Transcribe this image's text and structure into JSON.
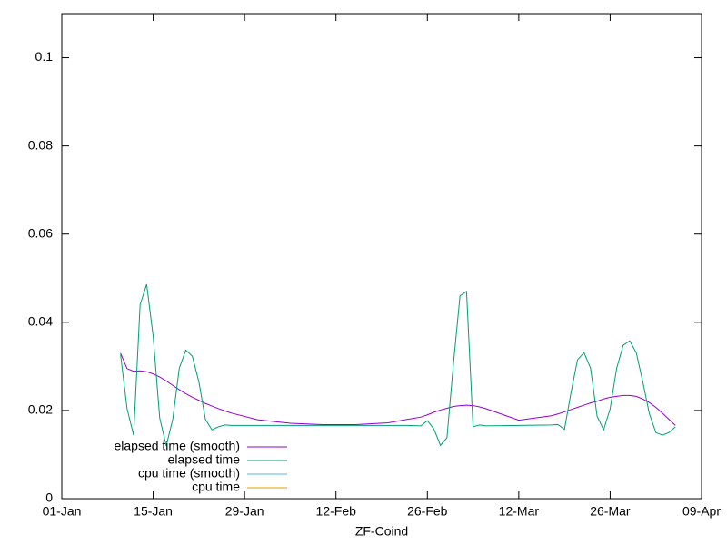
{
  "chart_data": {
    "type": "line",
    "xlabel": "ZF-Coind",
    "xlim": [
      0,
      98
    ],
    "ylim": [
      0,
      0.11
    ],
    "xticks": [
      {
        "value": 0,
        "label": "01-Jan"
      },
      {
        "value": 14,
        "label": "15-Jan"
      },
      {
        "value": 28,
        "label": "29-Jan"
      },
      {
        "value": 42,
        "label": "12-Feb"
      },
      {
        "value": 56,
        "label": "26-Feb"
      },
      {
        "value": 70,
        "label": "12-Mar"
      },
      {
        "value": 84,
        "label": "26-Mar"
      },
      {
        "value": 98,
        "label": "09-Apr"
      }
    ],
    "yticks": [
      0,
      0.02,
      0.04,
      0.06,
      0.08,
      0.1
    ],
    "legend": "bottom-left",
    "x": [
      9,
      10,
      11,
      12,
      13,
      14,
      15,
      16,
      17,
      18,
      19,
      20,
      21,
      22,
      23,
      24,
      25,
      26,
      30,
      35,
      40,
      45,
      50,
      53,
      55,
      56,
      57,
      58,
      59,
      60,
      61,
      62,
      63,
      64,
      65,
      70,
      75,
      76,
      77,
      78,
      79,
      80,
      81,
      82,
      83,
      84,
      85,
      86,
      87,
      88,
      89,
      90,
      91,
      92,
      93,
      94
    ],
    "series": [
      {
        "name": "elapsed time (smooth)",
        "color": "#9400d3",
        "values": [
          0.033,
          0.0295,
          0.0289,
          0.029,
          0.0288,
          0.0283,
          0.0276,
          0.0267,
          0.0257,
          0.0247,
          0.0238,
          0.023,
          0.0223,
          0.0216,
          0.021,
          0.0204,
          0.0199,
          0.0194,
          0.0179,
          0.0171,
          0.0168,
          0.0168,
          0.0172,
          0.018,
          0.0185,
          0.019,
          0.0196,
          0.0201,
          0.0205,
          0.0209,
          0.0211,
          0.0212,
          0.0211,
          0.0208,
          0.0204,
          0.0178,
          0.0188,
          0.0192,
          0.0197,
          0.0202,
          0.0207,
          0.0212,
          0.0217,
          0.0221,
          0.0226,
          0.023,
          0.0232,
          0.0234,
          0.0234,
          0.0232,
          0.0226,
          0.0218,
          0.0207,
          0.0194,
          0.018,
          0.0166
        ]
      },
      {
        "name": "elapsed time",
        "color": "#009e73",
        "values": [
          0.0327,
          0.0204,
          0.0144,
          0.044,
          0.0486,
          0.0368,
          0.0183,
          0.012,
          0.018,
          0.0296,
          0.0337,
          0.0323,
          0.0265,
          0.018,
          0.0156,
          0.0163,
          0.0167,
          0.0166,
          0.0166,
          0.0166,
          0.0166,
          0.0166,
          0.0166,
          0.0166,
          0.0165,
          0.0177,
          0.0158,
          0.0121,
          0.0138,
          0.0307,
          0.046,
          0.047,
          0.0163,
          0.0167,
          0.0165,
          0.0166,
          0.0167,
          0.0168,
          0.0157,
          0.024,
          0.0315,
          0.0331,
          0.0296,
          0.0187,
          0.0156,
          0.0204,
          0.0296,
          0.0348,
          0.0358,
          0.0331,
          0.0265,
          0.0193,
          0.015,
          0.0144,
          0.015,
          0.0163
        ]
      },
      {
        "name": "cpu time (smooth)",
        "color": "#56b4e9",
        "values": [
          null,
          null,
          null,
          null,
          null,
          null,
          null,
          null,
          null,
          null,
          null,
          null,
          null,
          null,
          null,
          null,
          null,
          null,
          null,
          null,
          null,
          null,
          null,
          null,
          null,
          null,
          null,
          null,
          null,
          null,
          null,
          null,
          null,
          null,
          null,
          null,
          null,
          null,
          null,
          null,
          null,
          null,
          null,
          null,
          null,
          null,
          null,
          null,
          null,
          null,
          null,
          null,
          null,
          null,
          null,
          null
        ]
      },
      {
        "name": "cpu time",
        "color": "#e69f00",
        "values": [
          null,
          null,
          null,
          null,
          null,
          null,
          null,
          null,
          null,
          null,
          null,
          null,
          null,
          null,
          null,
          null,
          null,
          null,
          null,
          null,
          null,
          null,
          null,
          null,
          null,
          null,
          null,
          null,
          null,
          null,
          null,
          null,
          null,
          null,
          null,
          null,
          null,
          null,
          null,
          null,
          null,
          null,
          null,
          null,
          null,
          null,
          null,
          null,
          null,
          null,
          null,
          null,
          null,
          null,
          null,
          null
        ]
      }
    ]
  }
}
